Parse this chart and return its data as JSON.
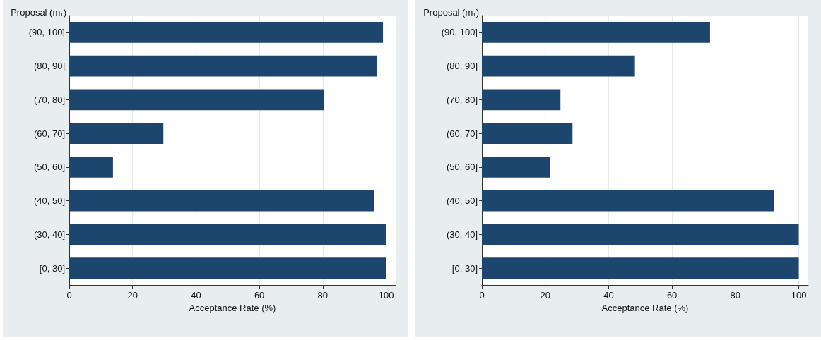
{
  "chart_data": [
    {
      "type": "bar",
      "orientation": "horizontal",
      "ylabel": "Proposal (m₁)",
      "xlabel": "Acceptance Rate (%)",
      "categories": [
        "(90, 100]",
        "(80, 90]",
        "(70, 80]",
        "(60, 70]",
        "(50, 60]",
        "(40, 50]",
        "(30, 40]",
        "[0, 30]"
      ],
      "values": [
        99.0,
        97.1,
        80.4,
        29.7,
        13.8,
        96.3,
        100,
        100
      ],
      "color": "#1c466e",
      "xlim": [
        0,
        103
      ],
      "xticks": [
        0,
        20,
        40,
        60,
        80,
        100
      ],
      "grid": "x"
    },
    {
      "type": "bar",
      "orientation": "horizontal",
      "ylabel": "Proposal (m₁)",
      "xlabel": "Acceptance Rate (%)",
      "categories": [
        "(90, 100]",
        "(80, 90]",
        "(70, 80]",
        "(60, 70]",
        "(50, 60]",
        "(40, 50]",
        "(30, 40]",
        "[0, 30]"
      ],
      "values": [
        72.0,
        48.3,
        24.8,
        28.6,
        21.6,
        92.3,
        100,
        100
      ],
      "color": "#1c466e",
      "xlim": [
        0,
        103
      ],
      "xticks": [
        0,
        20,
        40,
        60,
        80,
        100
      ],
      "grid": "x"
    }
  ]
}
